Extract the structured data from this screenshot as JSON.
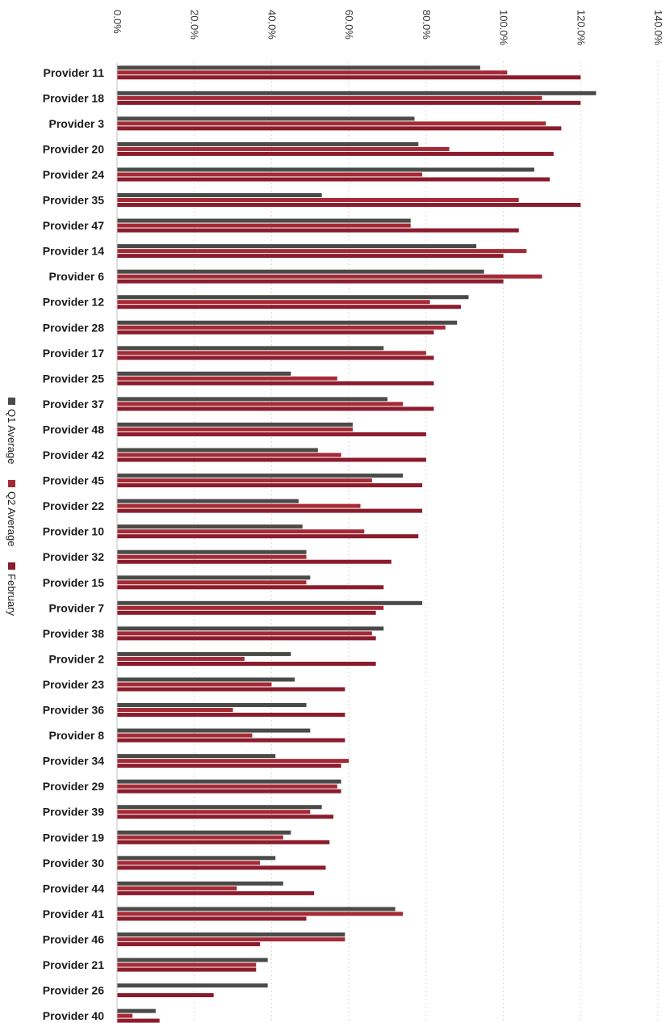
{
  "chart_data": {
    "type": "bar",
    "orientation": "horizontal",
    "title": "",
    "xlabel": "",
    "ylabel": "",
    "xlim": [
      0,
      140
    ],
    "ticks": [
      "0.0%",
      "20.0%",
      "40.0%",
      "60.0%",
      "80.0%",
      "100.0%",
      "120.0%",
      "140.0%"
    ],
    "tick_values": [
      0,
      20,
      40,
      60,
      80,
      100,
      120,
      140
    ],
    "grid": true,
    "legend_position": "left",
    "categories": [
      "Provider 11",
      "Provider 18",
      "Provider 3",
      "Provider 20",
      "Provider 24",
      "Provider 35",
      "Provider 47",
      "Provider 14",
      "Provider 6",
      "Provider 12",
      "Provider 28",
      "Provider 17",
      "Provider 25",
      "Provider 37",
      "Provider 48",
      "Provider 42",
      "Provider 45",
      "Provider 22",
      "Provider 10",
      "Provider 32",
      "Provider 15",
      "Provider 7",
      "Provider 38",
      "Provider 2",
      "Provider 23",
      "Provider 36",
      "Provider 8",
      "Provider 34",
      "Provider 29",
      "Provider 39",
      "Provider 19",
      "Provider 30",
      "Provider 44",
      "Provider 41",
      "Provider 46",
      "Provider 21",
      "Provider 26",
      "Provider 40"
    ],
    "series": [
      {
        "name": "Q1 Average",
        "color": "#4a4a48",
        "values": [
          94,
          124,
          77,
          78,
          108,
          53,
          76,
          93,
          95,
          91,
          88,
          69,
          45,
          70,
          61,
          52,
          74,
          47,
          48,
          49,
          50,
          79,
          69,
          45,
          46,
          49,
          50,
          41,
          58,
          53,
          45,
          41,
          43,
          72,
          59,
          39,
          39,
          10
        ]
      },
      {
        "name": "Q2 Average",
        "color": "#a52a35",
        "values": [
          101,
          110,
          111,
          86,
          79,
          104,
          76,
          106,
          110,
          81,
          85,
          80,
          57,
          74,
          61,
          58,
          66,
          63,
          64,
          49,
          49,
          69,
          66,
          33,
          40,
          30,
          35,
          60,
          57,
          50,
          43,
          37,
          31,
          74,
          59,
          36,
          0,
          4
        ]
      },
      {
        "name": "February",
        "color": "#8b1c2d",
        "values": [
          120,
          120,
          115,
          113,
          112,
          120,
          104,
          100,
          100,
          89,
          82,
          82,
          82,
          82,
          80,
          80,
          79,
          79,
          78,
          71,
          69,
          67,
          67,
          67,
          59,
          59,
          59,
          58,
          58,
          56,
          55,
          54,
          51,
          49,
          37,
          36,
          25,
          11
        ]
      }
    ]
  }
}
